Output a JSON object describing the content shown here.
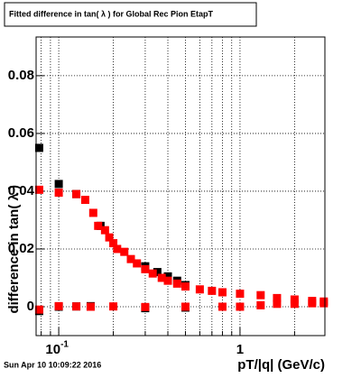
{
  "chart_data": {
    "type": "scatter",
    "title": "Fitted difference in tan( λ ) for Global Rec Pion EtapT",
    "x_label": "pT/|q| (GeV/c)",
    "y_label": "difference in tan( λ )",
    "timestamp": "Sun Apr 10 10:09:22 2016",
    "xscale": "log",
    "grid": true,
    "xlim": [
      0.075,
      2.94
    ],
    "ylim": [
      -0.01,
      0.0934
    ],
    "xticks": [
      {
        "value": 0.1,
        "label": "10",
        "exponent": "-1"
      },
      1
    ],
    "xminorticks": [
      0.08,
      0.09,
      0.2,
      0.3,
      0.4,
      0.5,
      0.6,
      0.7,
      0.8,
      0.9,
      2
    ],
    "yticks": [
      0,
      0.02,
      0.04,
      0.06,
      0.08
    ],
    "series": [
      {
        "color": "#000000",
        "x": [
          0.078,
          0.1,
          0.125,
          0.17,
          0.3,
          0.35,
          0.4,
          0.45,
          0.5
        ],
        "values": [
          0.055,
          0.0425,
          0.039,
          0.028,
          0.014,
          0.012,
          0.0105,
          0.009,
          0.0075
        ]
      },
      {
        "color": "#000000",
        "x": [
          0.078,
          0.1,
          0.125,
          0.15,
          0.3,
          0.5
        ],
        "values": [
          -0.0015,
          0,
          0.0001,
          0.0002,
          -0.0005,
          -0.0003
        ]
      },
      {
        "color": "#ff0000",
        "x": [
          0.078,
          0.1,
          0.125,
          0.14,
          0.155,
          0.165,
          0.18,
          0.19,
          0.2,
          0.21,
          0.23,
          0.25,
          0.27,
          0.3,
          0.33,
          0.37,
          0.4,
          0.45,
          0.5,
          0.6,
          0.7,
          0.8,
          1.0,
          1.3,
          1.6,
          2.0,
          2.5,
          2.9
        ],
        "values": [
          0.0405,
          0.0395,
          0.039,
          0.037,
          0.0325,
          0.028,
          0.0265,
          0.024,
          0.022,
          0.02,
          0.019,
          0.0165,
          0.015,
          0.013,
          0.0115,
          0.01,
          0.009,
          0.008,
          0.007,
          0.006,
          0.0055,
          0.005,
          0.0045,
          0.004,
          0.003,
          0.0025,
          0.002,
          0.0018
        ]
      },
      {
        "color": "#ff0000",
        "x": [
          0.078,
          0.1,
          0.125,
          0.15,
          0.2,
          0.3,
          0.5,
          0.8,
          1.0,
          1.3,
          1.6,
          2.0,
          2.5,
          2.9
        ],
        "values": [
          -0.001,
          0.0002,
          0.0001,
          0,
          0.0001,
          -0.0001,
          0,
          0,
          0,
          0.0005,
          0.001,
          0.001,
          0.0012,
          0.0012
        ]
      }
    ]
  }
}
